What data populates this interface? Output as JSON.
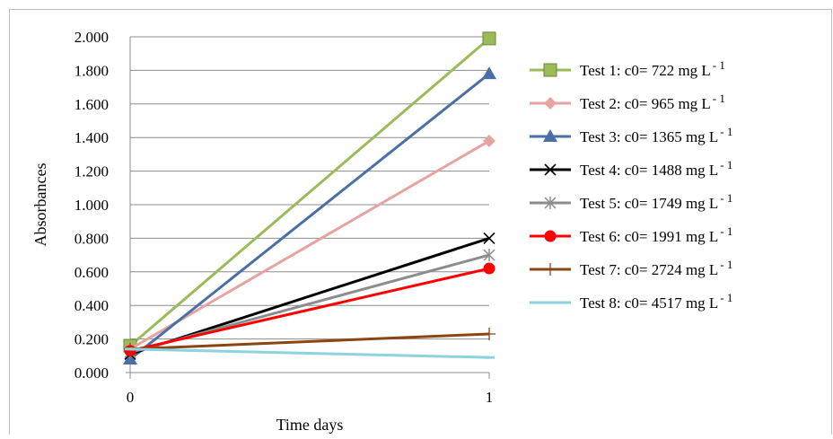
{
  "chart_data": {
    "type": "line",
    "xlabel": "Time days",
    "ylabel": "Absorbances",
    "x": [
      0,
      1
    ],
    "xticks": [
      "0",
      "1"
    ],
    "ylim": [
      0,
      2
    ],
    "yticks": [
      "0.000",
      "0.200",
      "0.400",
      "0.600",
      "0.800",
      "1.000",
      "1.200",
      "1.400",
      "1.600",
      "1.800",
      "2.000"
    ],
    "grid": "horizontal",
    "legend_position": "right",
    "series": [
      {
        "name": "Test 1: c0= 722  mg L",
        "sup": "- 1",
        "color": "#9bbb59",
        "marker": "square",
        "values": [
          0.16,
          1.99
        ]
      },
      {
        "name": "Test 2: c0= 965  mg L",
        "sup": "- 1",
        "color": "#e6a3a1",
        "marker": "diamond",
        "values": [
          0.14,
          1.38
        ]
      },
      {
        "name": "Test 3: c0= 1365 mg L",
        "sup": "- 1",
        "color": "#4a6fa5",
        "marker": "triangle",
        "values": [
          0.08,
          1.78
        ]
      },
      {
        "name": "Test 4: c0= 1488 mg L",
        "sup": "- 1",
        "color": "#000000",
        "marker": "x",
        "values": [
          0.11,
          0.8
        ]
      },
      {
        "name": "Test 5: c0= 1749 mg L",
        "sup": "- 1",
        "color": "#8c8c8c",
        "marker": "star",
        "values": [
          0.12,
          0.7
        ]
      },
      {
        "name": "Test 6: c0= 1991 mg L",
        "sup": "- 1",
        "color": "#ff0000",
        "marker": "circle",
        "values": [
          0.13,
          0.62
        ]
      },
      {
        "name": "Test 7: c0= 2724 mg L",
        "sup": "- 1",
        "color": "#8b4513",
        "marker": "plus",
        "values": [
          0.14,
          0.23
        ]
      },
      {
        "name": "Test 8: c0= 4517 mg L",
        "sup": "- 1",
        "color": "#8dd3df",
        "marker": "dash",
        "values": [
          0.14,
          0.09
        ]
      }
    ]
  }
}
